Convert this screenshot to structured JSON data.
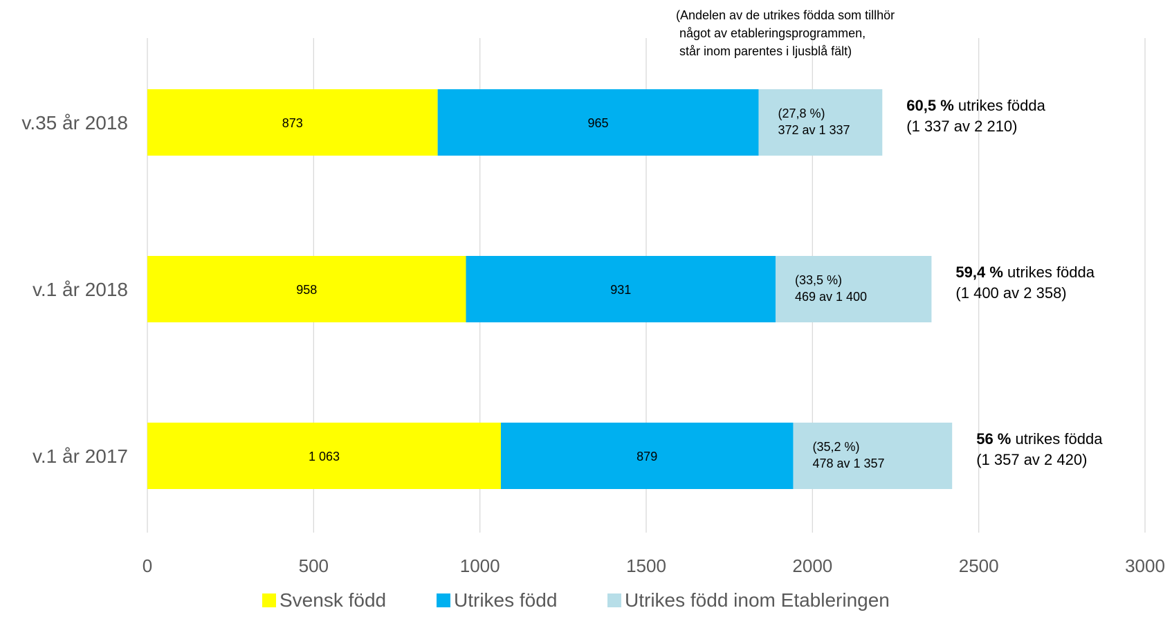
{
  "chart_data": {
    "type": "bar",
    "orientation": "horizontal",
    "stacked": true,
    "categories": [
      "v.35 år 2018",
      "v.1 år 2018",
      "v.1 år 2017"
    ],
    "series": [
      {
        "name": "Svensk född",
        "color": "#ffff00",
        "values": [
          873,
          958,
          1063
        ],
        "labels": [
          "873",
          "958",
          "1 063"
        ]
      },
      {
        "name": "Utrikes född",
        "color": "#00b0f0",
        "values": [
          965,
          931,
          879
        ],
        "labels": [
          "965",
          "931",
          "879"
        ]
      },
      {
        "name": "Utrikes född inom Etableringen",
        "color": "#b7dee8",
        "values": [
          372,
          469,
          478
        ],
        "labels": [
          [
            "(27,8 %)",
            "372 av 1 337"
          ],
          [
            "(33,5 %)",
            "469 av 1 400"
          ],
          [
            "(35,2 %)",
            "478 av 1 357"
          ]
        ]
      }
    ],
    "side_annotations": [
      {
        "bold": "60,5 %",
        "rest": " utrikes födda",
        "line2": "(1 337 av 2 210)"
      },
      {
        "bold": "59,4 %",
        "rest": " utrikes födda",
        "line2": "(1 400 av 2 358)"
      },
      {
        "bold": "56 %",
        "rest": " utrikes födda",
        "line2": "(1 357 av 2 420)"
      }
    ],
    "note": [
      "(Andelen av de utrikes födda som tillhör",
      " något av etableringsprogrammen,",
      " står inom parentes i ljusblå fält)"
    ],
    "x_ticks": [
      0,
      500,
      1000,
      1500,
      2000,
      2500,
      3000
    ],
    "xlim": [
      0,
      3000
    ],
    "grid": true,
    "legend_position": "bottom"
  }
}
